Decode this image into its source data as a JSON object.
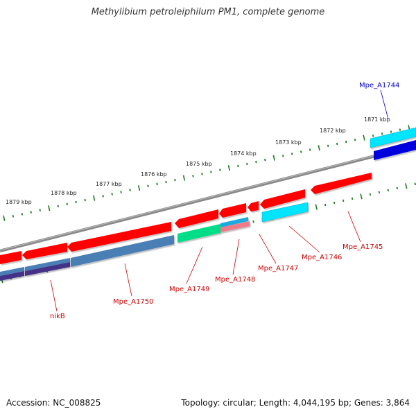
{
  "title": "Methylibium petroleiphilum PM1, complete genome",
  "footer": {
    "accession": "Accession: NC_008825",
    "genome_info": "Topology: circular; Length: 4,044,195 bp; Genes: 3,864"
  },
  "colors": {
    "backbone": "#8a8a8a",
    "ticks": "#1e7d1e",
    "forward_gene": "#ff0000",
    "label_red": "#cc0000",
    "label_blue": "#0000cc"
  },
  "scale_labels": [
    "1871 kbp",
    "1872 kbp",
    "1873 kbp",
    "1874 kbp",
    "1875 kbp",
    "1876 kbp",
    "1877 kbp",
    "1878 kbp",
    "1879 kbp"
  ],
  "gene_labels": [
    {
      "text": "Mpe_A1744",
      "color": "#0000cc"
    },
    {
      "text": "Mpe_A1745",
      "color": "#cc0000"
    },
    {
      "text": "Mpe_A1746",
      "color": "#cc0000"
    },
    {
      "text": "Mpe_A1747",
      "color": "#cc0000"
    },
    {
      "text": "Mpe_A1748",
      "color": "#cc0000"
    },
    {
      "text": "Mpe_A1749",
      "color": "#cc0000"
    },
    {
      "text": "Mpe_A1750",
      "color": "#cc0000"
    },
    {
      "text": "nikB",
      "color": "#cc0000"
    }
  ]
}
